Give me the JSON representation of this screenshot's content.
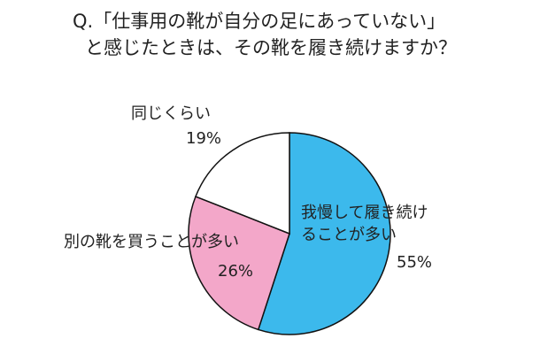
{
  "chart_data": {
    "type": "pie",
    "title": [
      "Q.「仕事用の靴が自分の足にあっていない」",
      "と感じたときは、その靴を履き続けますか？"
    ],
    "categories": [
      "我慢して履き続けることが多い",
      "別の靴を買うことが多い",
      "同じくらい"
    ],
    "values": [
      55,
      26,
      19
    ],
    "value_labels": [
      "55%",
      "26%",
      "19%"
    ],
    "colors": [
      "#3cb9ec",
      "#f3a7c9",
      "#ffffff"
    ]
  }
}
